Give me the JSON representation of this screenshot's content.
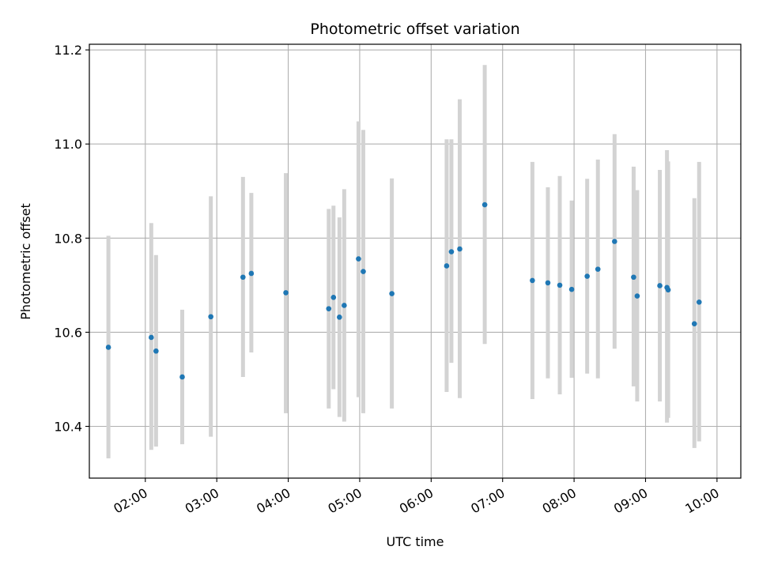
{
  "chart_data": {
    "type": "scatter",
    "title": "Photometric offset variation",
    "xlabel": "UTC time",
    "ylabel": "Photometric offset",
    "x_ticks": [
      "02:00",
      "03:00",
      "04:00",
      "05:00",
      "06:00",
      "07:00",
      "08:00",
      "09:00",
      "10:00"
    ],
    "y_ticks": [
      "10.4",
      "10.6",
      "10.8",
      "11.0",
      "11.2"
    ],
    "xlim": [
      "01:13",
      "10:20"
    ],
    "ylim": [
      10.29,
      11.212
    ],
    "grid": true,
    "marker_color": "#1f77b4",
    "errorbar_color": "#d3d3d3",
    "points": [
      {
        "x": "01:29",
        "y": 10.568,
        "lo": 10.332,
        "hi": 10.805
      },
      {
        "x": "02:05",
        "y": 10.589,
        "lo": 10.35,
        "hi": 10.832
      },
      {
        "x": "02:09",
        "y": 10.56,
        "lo": 10.357,
        "hi": 10.764
      },
      {
        "x": "02:31",
        "y": 10.505,
        "lo": 10.362,
        "hi": 10.648
      },
      {
        "x": "02:55",
        "y": 10.633,
        "lo": 10.378,
        "hi": 10.889
      },
      {
        "x": "03:22",
        "y": 10.717,
        "lo": 10.505,
        "hi": 10.93
      },
      {
        "x": "03:29",
        "y": 10.725,
        "lo": 10.557,
        "hi": 10.896
      },
      {
        "x": "03:58",
        "y": 10.684,
        "lo": 10.428,
        "hi": 10.938
      },
      {
        "x": "04:34",
        "y": 10.65,
        "lo": 10.438,
        "hi": 10.862
      },
      {
        "x": "04:38",
        "y": 10.674,
        "lo": 10.479,
        "hi": 10.869
      },
      {
        "x": "04:43",
        "y": 10.632,
        "lo": 10.42,
        "hi": 10.844
      },
      {
        "x": "04:47",
        "y": 10.657,
        "lo": 10.41,
        "hi": 10.904
      },
      {
        "x": "04:59",
        "y": 10.756,
        "lo": 10.462,
        "hi": 11.048
      },
      {
        "x": "05:03",
        "y": 10.729,
        "lo": 10.428,
        "hi": 11.03
      },
      {
        "x": "05:27",
        "y": 10.682,
        "lo": 10.438,
        "hi": 10.927
      },
      {
        "x": "06:13",
        "y": 10.741,
        "lo": 10.473,
        "hi": 11.01
      },
      {
        "x": "06:17",
        "y": 10.771,
        "lo": 10.535,
        "hi": 11.01
      },
      {
        "x": "06:24",
        "y": 10.777,
        "lo": 10.46,
        "hi": 11.095
      },
      {
        "x": "06:45",
        "y": 10.871,
        "lo": 10.575,
        "hi": 11.168
      },
      {
        "x": "07:25",
        "y": 10.71,
        "lo": 10.458,
        "hi": 10.962
      },
      {
        "x": "07:38",
        "y": 10.705,
        "lo": 10.502,
        "hi": 10.908
      },
      {
        "x": "07:48",
        "y": 10.7,
        "lo": 10.468,
        "hi": 10.932
      },
      {
        "x": "07:58",
        "y": 10.691,
        "lo": 10.503,
        "hi": 10.88
      },
      {
        "x": "08:11",
        "y": 10.719,
        "lo": 10.512,
        "hi": 10.926
      },
      {
        "x": "08:20",
        "y": 10.734,
        "lo": 10.502,
        "hi": 10.967
      },
      {
        "x": "08:34",
        "y": 10.793,
        "lo": 10.565,
        "hi": 11.021
      },
      {
        "x": "08:50",
        "y": 10.717,
        "lo": 10.485,
        "hi": 10.952
      },
      {
        "x": "08:53",
        "y": 10.677,
        "lo": 10.453,
        "hi": 10.902
      },
      {
        "x": "09:12",
        "y": 10.699,
        "lo": 10.453,
        "hi": 10.945
      },
      {
        "x": "09:18",
        "y": 10.695,
        "lo": 10.408,
        "hi": 10.987
      },
      {
        "x": "09:19",
        "y": 10.69,
        "lo": 10.418,
        "hi": 10.963
      },
      {
        "x": "09:41",
        "y": 10.618,
        "lo": 10.354,
        "hi": 10.885
      },
      {
        "x": "09:45",
        "y": 10.664,
        "lo": 10.368,
        "hi": 10.962
      }
    ]
  }
}
